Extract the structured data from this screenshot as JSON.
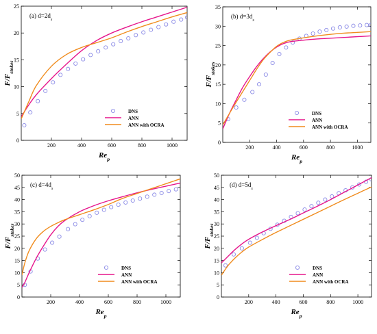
{
  "figure": {
    "series_styles": {
      "dns": {
        "color": "#8a8ae6",
        "marker": "open-circle"
      },
      "ann": {
        "color": "#e6168c"
      },
      "ocra": {
        "color": "#f08c1e"
      }
    }
  },
  "chart_data": [
    {
      "type": "line",
      "panel_label": "(a) d=2d_s",
      "xlabel": "Re_p",
      "ylabel": "F/F_stokes",
      "xlim": [
        0,
        1100
      ],
      "ylim": [
        0,
        25
      ],
      "xticks": [
        200,
        400,
        600,
        800,
        1000
      ],
      "yticks": [
        0,
        5,
        10,
        15,
        20,
        25
      ],
      "legend": {
        "position": "bottom-right",
        "entries": [
          "DNS",
          "ANN",
          "ANN with OCRA"
        ]
      },
      "series": [
        {
          "name": "DNS",
          "kind": "markers",
          "x": [
            20,
            60,
            110,
            160,
            210,
            260,
            310,
            360,
            410,
            460,
            510,
            560,
            610,
            660,
            710,
            760,
            810,
            860,
            910,
            960,
            1010,
            1060,
            1100
          ],
          "y": [
            2.8,
            5.2,
            7.3,
            9.2,
            10.8,
            12.2,
            13.3,
            14.3,
            15.1,
            15.9,
            16.6,
            17.3,
            17.9,
            18.5,
            19.0,
            19.6,
            20.1,
            20.6,
            21.1,
            21.6,
            22.1,
            22.5,
            22.9
          ]
        },
        {
          "name": "ANN",
          "kind": "line",
          "x": [
            0,
            50,
            100,
            200,
            300,
            400,
            500,
            600,
            700,
            800,
            900,
            1000,
            1100
          ],
          "y": [
            4.4,
            6.6,
            8.5,
            11.5,
            14.2,
            16.7,
            18.6,
            20.0,
            21.1,
            22.1,
            23.0,
            23.9,
            24.8
          ]
        },
        {
          "name": "ANN with OCRA",
          "kind": "line",
          "x": [
            0,
            50,
            100,
            200,
            300,
            400,
            500,
            600,
            700,
            800,
            900,
            1000,
            1100
          ],
          "y": [
            4.0,
            7.2,
            10.2,
            13.8,
            16.0,
            17.3,
            18.2,
            19.1,
            20.2,
            21.2,
            22.1,
            23.0,
            23.8
          ]
        }
      ]
    },
    {
      "type": "line",
      "panel_label": "(b) d=3d_s",
      "xlabel": "Re_p",
      "ylabel": "F/F_stokes",
      "xlim": [
        0,
        1100
      ],
      "ylim": [
        0,
        35
      ],
      "xticks": [
        200,
        400,
        600,
        800,
        1000
      ],
      "yticks": [
        0,
        5,
        10,
        15,
        20,
        25,
        30,
        35
      ],
      "legend": {
        "position": "bottom-right",
        "entries": [
          "DNS",
          "ANN",
          "ANN with OCRA"
        ]
      },
      "series": [
        {
          "name": "DNS",
          "kind": "markers",
          "x": [
            40,
            100,
            160,
            220,
            270,
            320,
            370,
            420,
            470,
            520,
            570,
            620,
            670,
            720,
            770,
            820,
            870,
            920,
            970,
            1020,
            1070,
            1100
          ],
          "y": [
            6.0,
            9.0,
            11.0,
            13.0,
            15.0,
            17.5,
            20.5,
            22.8,
            24.5,
            25.8,
            26.8,
            27.5,
            28.1,
            28.6,
            29.0,
            29.4,
            29.7,
            29.9,
            30.1,
            30.2,
            30.3,
            30.3
          ]
        },
        {
          "name": "ANN",
          "kind": "line",
          "x": [
            0,
            50,
            100,
            150,
            200,
            250,
            300,
            350,
            400,
            450,
            500,
            600,
            700,
            800,
            900,
            1000,
            1100
          ],
          "y": [
            3.5,
            7.5,
            11.0,
            14.3,
            17.0,
            19.5,
            21.6,
            23.3,
            24.6,
            25.5,
            26.0,
            26.4,
            26.7,
            26.9,
            27.1,
            27.3,
            27.5
          ]
        },
        {
          "name": "ANN with OCRA",
          "kind": "line",
          "x": [
            0,
            50,
            100,
            150,
            200,
            250,
            300,
            350,
            400,
            450,
            500,
            600,
            700,
            800,
            900,
            1000,
            1100
          ],
          "y": [
            4.5,
            7.5,
            10.4,
            13.2,
            16.0,
            18.8,
            21.3,
            23.2,
            24.8,
            25.8,
            26.4,
            27.0,
            27.5,
            27.9,
            28.2,
            28.4,
            28.6
          ]
        }
      ]
    },
    {
      "type": "line",
      "panel_label": "(c) d=4d_s",
      "xlabel": "Re_p",
      "ylabel": "F/F_stokes",
      "xlim": [
        0,
        1100
      ],
      "ylim": [
        0,
        50
      ],
      "xticks": [
        200,
        400,
        600,
        800,
        1000
      ],
      "yticks": [
        0,
        5,
        10,
        15,
        20,
        25,
        30,
        35,
        40,
        45,
        50
      ],
      "legend": {
        "position": "bottom-right",
        "entries": [
          "DNS",
          "ANN",
          "ANN with OCRA"
        ]
      },
      "series": [
        {
          "name": "DNS",
          "kind": "markers",
          "x": [
            20,
            60,
            110,
            160,
            210,
            260,
            320,
            370,
            420,
            470,
            520,
            570,
            620,
            670,
            720,
            770,
            820,
            870,
            920,
            970,
            1020,
            1070
          ],
          "y": [
            5.0,
            10.5,
            15.8,
            19.5,
            22.3,
            24.8,
            27.9,
            29.9,
            31.7,
            33.2,
            34.6,
            35.8,
            36.9,
            37.9,
            38.8,
            39.6,
            40.4,
            41.2,
            42.0,
            42.7,
            43.5,
            44.2
          ]
        },
        {
          "name": "ANN",
          "kind": "line",
          "x": [
            0,
            20,
            50,
            100,
            150,
            200,
            250,
            300,
            400,
            500,
            600,
            700,
            800,
            900,
            1000,
            1100
          ],
          "y": [
            4.0,
            6.0,
            10.0,
            16.0,
            21.0,
            25.5,
            29.0,
            31.5,
            35.0,
            37.5,
            39.5,
            41.2,
            42.8,
            44.2,
            45.5,
            46.8
          ]
        },
        {
          "name": "ANN with OCRA",
          "kind": "line",
          "x": [
            0,
            20,
            50,
            100,
            150,
            200,
            250,
            300,
            400,
            500,
            600,
            700,
            800,
            900,
            1000,
            1100
          ],
          "y": [
            9.0,
            14.0,
            19.0,
            24.0,
            27.0,
            29.0,
            30.5,
            31.8,
            33.8,
            35.8,
            38.0,
            40.5,
            42.5,
            44.5,
            46.5,
            48.5
          ]
        }
      ]
    },
    {
      "type": "line",
      "panel_label": "(d) d=5d_s",
      "xlabel": "Re_p",
      "ylabel": "F/F_stokes",
      "xlim": [
        0,
        1100
      ],
      "ylim": [
        0,
        50
      ],
      "xticks": [
        200,
        400,
        600,
        800,
        1000
      ],
      "yticks": [
        0,
        5,
        10,
        15,
        20,
        25,
        30,
        35,
        40,
        45,
        50
      ],
      "legend": {
        "position": "bottom-right",
        "entries": [
          "DNS",
          "ANN",
          "ANN with OCRA"
        ]
      },
      "series": [
        {
          "name": "DNS",
          "kind": "markers",
          "x": [
            30,
            90,
            150,
            210,
            260,
            310,
            360,
            410,
            460,
            510,
            560,
            610,
            660,
            710,
            760,
            810,
            860,
            910,
            960,
            1010,
            1060,
            1100
          ],
          "y": [
            13.0,
            17.5,
            20.0,
            22.3,
            24.3,
            26.2,
            28.0,
            29.7,
            31.3,
            32.9,
            34.4,
            35.9,
            37.3,
            38.7,
            40.0,
            41.3,
            42.6,
            43.8,
            45.0,
            46.2,
            47.3,
            48.3
          ]
        },
        {
          "name": "ANN",
          "kind": "line",
          "x": [
            0,
            50,
            100,
            150,
            200,
            300,
            400,
            500,
            600,
            700,
            800,
            900,
            1000,
            1100
          ],
          "y": [
            14.0,
            16.8,
            19.5,
            21.8,
            23.7,
            26.7,
            29.3,
            31.8,
            34.5,
            37.2,
            40.0,
            43.0,
            46.0,
            49.0
          ]
        },
        {
          "name": "ANN with OCRA",
          "kind": "line",
          "x": [
            0,
            50,
            100,
            150,
            200,
            300,
            400,
            500,
            600,
            700,
            800,
            900,
            1000,
            1100
          ],
          "y": [
            9.0,
            13.0,
            16.0,
            18.5,
            20.5,
            23.6,
            26.5,
            29.2,
            31.9,
            34.6,
            37.3,
            40.0,
            42.6,
            45.2
          ]
        }
      ]
    }
  ]
}
